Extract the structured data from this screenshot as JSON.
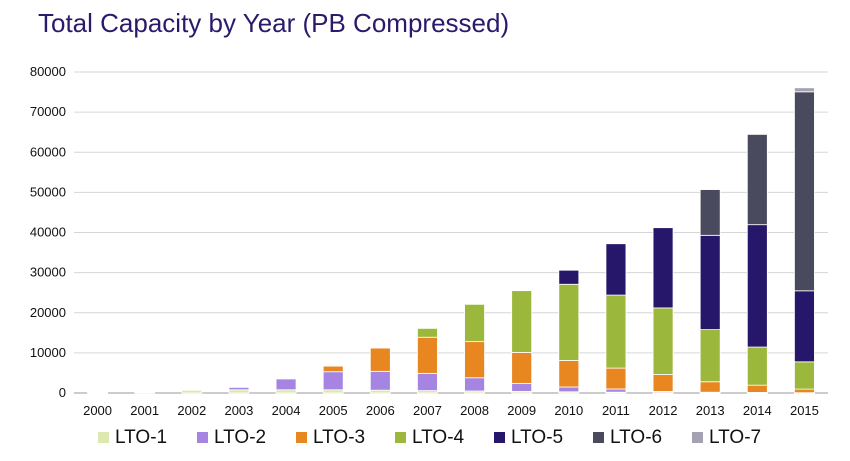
{
  "chart_data": {
    "type": "bar",
    "stacked": true,
    "title": "Total Capacity by Year (PB Compressed)",
    "xlabel": "",
    "ylabel": "",
    "ylim": [
      0,
      80000
    ],
    "yticks": [
      0,
      10000,
      20000,
      30000,
      40000,
      50000,
      60000,
      70000,
      80000
    ],
    "grid": "horizontal",
    "legend_position": "bottom",
    "categories": [
      "2000",
      "2001",
      "2002",
      "2003",
      "2004",
      "2005",
      "2006",
      "2007",
      "2008",
      "2009",
      "2010",
      "2011",
      "2012",
      "2013",
      "2014",
      "2015"
    ],
    "series": [
      {
        "name": "LTO-1",
        "color": "#dde8b0",
        "values": [
          50,
          200,
          700,
          800,
          800,
          800,
          700,
          600,
          500,
          400,
          300,
          200,
          100,
          50,
          50,
          20
        ]
      },
      {
        "name": "LTO-2",
        "color": "#a685e2",
        "values": [
          0,
          0,
          0,
          600,
          2700,
          4500,
          4700,
          4300,
          3300,
          2000,
          1200,
          800,
          300,
          150,
          100,
          50
        ]
      },
      {
        "name": "LTO-3",
        "color": "#e8861f",
        "values": [
          0,
          0,
          0,
          0,
          0,
          1400,
          5800,
          9000,
          9000,
          7700,
          6600,
          5200,
          4200,
          2600,
          1800,
          900
        ]
      },
      {
        "name": "LTO-4",
        "color": "#9cb83c",
        "values": [
          0,
          0,
          0,
          0,
          0,
          0,
          0,
          2200,
          9300,
          15400,
          19000,
          18200,
          16600,
          13000,
          9500,
          6800
        ]
      },
      {
        "name": "LTO-5",
        "color": "#27176a",
        "values": [
          0,
          0,
          0,
          0,
          0,
          0,
          0,
          0,
          0,
          0,
          3500,
          12800,
          20000,
          23500,
          30500,
          17700
        ]
      },
      {
        "name": "LTO-6",
        "color": "#4a4a5e",
        "values": [
          0,
          0,
          0,
          0,
          0,
          0,
          0,
          0,
          0,
          0,
          0,
          0,
          0,
          11400,
          22500,
          49600
        ]
      },
      {
        "name": "LTO-7",
        "color": "#a4a2b2",
        "values": [
          0,
          0,
          0,
          0,
          0,
          0,
          0,
          0,
          0,
          0,
          0,
          0,
          0,
          0,
          0,
          1000
        ]
      }
    ]
  }
}
